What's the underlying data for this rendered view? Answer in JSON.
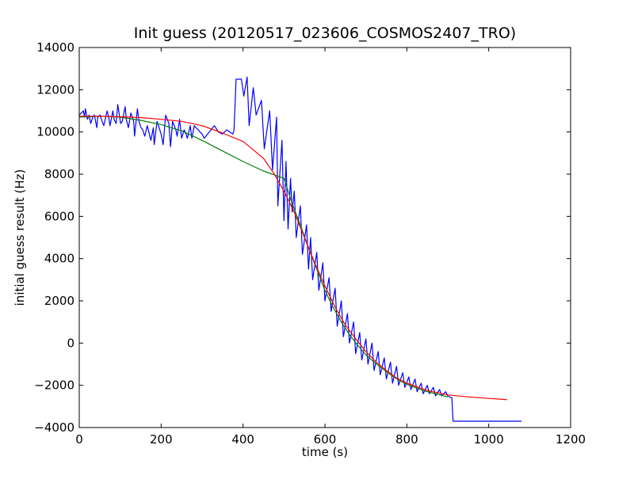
{
  "chart_data": {
    "type": "line",
    "title": "Init guess (20120517_023606_COSMOS2407_TRO)",
    "xlabel": "time (s)",
    "ylabel": "initial guess result (Hz)",
    "xlim": [
      0,
      1200
    ],
    "ylim": [
      -4000,
      14000
    ],
    "xticks": [
      0,
      200,
      400,
      600,
      800,
      1000,
      1200
    ],
    "yticks": [
      -4000,
      -2000,
      0,
      2000,
      4000,
      6000,
      8000,
      10000,
      12000,
      14000
    ],
    "x_tick_labels": [
      "0",
      "200",
      "400",
      "600",
      "800",
      "1000",
      "1200"
    ],
    "y_tick_labels": [
      "−4000",
      "−2000",
      "0",
      "2000",
      "4000",
      "6000",
      "8000",
      "10000",
      "12000",
      "14000"
    ],
    "grid": false,
    "legend": "none",
    "series": [
      {
        "color": "#0000ff",
        "x": [
          0,
          10,
          13,
          15,
          20,
          24,
          28,
          33,
          37,
          43,
          45,
          51,
          56,
          60,
          68,
          72,
          75,
          82,
          85,
          90,
          94,
          101,
          105,
          112,
          115,
          120,
          126,
          133,
          135,
          142,
          146,
          151,
          155,
          160,
          166,
          175,
          181,
          183,
          190,
          195,
          200,
          205,
          211,
          219,
          223,
          228,
          236,
          239,
          245,
          250,
          256,
          261,
          264,
          271,
          275,
          281,
          285,
          291,
          295,
          300,
          305,
          330,
          340,
          350,
          360,
          375,
          378,
          383,
          396,
          402,
          410,
          415,
          425,
          432,
          445,
          452,
          465,
          472,
          482,
          485,
          495,
          500,
          505,
          510,
          516,
          520,
          525,
          530,
          540,
          545,
          555,
          560,
          565,
          570,
          580,
          585,
          595,
          600,
          610,
          615,
          625,
          630,
          640,
          645,
          655,
          660,
          670,
          675,
          685,
          690,
          700,
          705,
          715,
          720,
          730,
          735,
          745,
          750,
          760,
          765,
          775,
          780,
          790,
          795,
          805,
          810,
          820,
          825,
          835,
          840,
          850,
          855,
          865,
          870,
          880,
          885,
          895,
          900,
          910,
          913,
          930,
          1000,
          1080
        ],
        "y": [
          10800,
          11000,
          10700,
          11100,
          10600,
          10800,
          10400,
          10700,
          10800,
          10200,
          10700,
          10800,
          10500,
          10300,
          11000,
          10700,
          10300,
          11000,
          10600,
          10400,
          11300,
          10400,
          10500,
          11200,
          10600,
          10200,
          10900,
          10500,
          9800,
          11100,
          10500,
          10200,
          10100,
          9800,
          10300,
          9600,
          10200,
          9400,
          10500,
          10200,
          9900,
          9400,
          10800,
          10400,
          9300,
          10500,
          10100,
          9800,
          10600,
          9700,
          10100,
          9900,
          9700,
          10300,
          9700,
          10300,
          10200,
          10100,
          10000,
          9900,
          9700,
          10300,
          10000,
          9900,
          10100,
          9900,
          10100,
          12500,
          12500,
          11700,
          12600,
          10300,
          12100,
          10800,
          11500,
          9200,
          11000,
          8200,
          10700,
          6500,
          9600,
          5800,
          8600,
          5400,
          7800,
          6200,
          7200,
          5000,
          6500,
          4200,
          5600,
          3500,
          5000,
          3000,
          4300,
          2500,
          3800,
          2000,
          3100,
          1500,
          2600,
          800,
          2000,
          300,
          1400,
          0,
          1000,
          -500,
          500,
          -800,
          200,
          -1000,
          0,
          -1300,
          -400,
          -1500,
          -700,
          -1700,
          -900,
          -1900,
          -1100,
          -2000,
          -1400,
          -2100,
          -1600,
          -2200,
          -1700,
          -2300,
          -1900,
          -2400,
          -2000,
          -2400,
          -2100,
          -2500,
          -2200,
          -2500,
          -2300,
          -2500,
          -2600,
          -3700,
          -3700,
          -3700,
          -3700
        ]
      },
      {
        "color": "#008000",
        "x": [
          0,
          50,
          100,
          150,
          200,
          250,
          300,
          350,
          400,
          450,
          500,
          520,
          540,
          560,
          580,
          600,
          620,
          640,
          660,
          680,
          700,
          720,
          740,
          760,
          780,
          800,
          820,
          840,
          860,
          880,
          900
        ],
        "y": [
          10700,
          10750,
          10700,
          10550,
          10350,
          10050,
          9600,
          9100,
          8600,
          8150,
          7800,
          6600,
          5600,
          4500,
          3500,
          2500,
          1700,
          1000,
          400,
          -100,
          -550,
          -900,
          -1200,
          -1500,
          -1750,
          -1950,
          -2100,
          -2250,
          -2350,
          -2450,
          -2550
        ]
      },
      {
        "color": "#ff0000",
        "x": [
          0,
          50,
          100,
          150,
          200,
          250,
          300,
          350,
          400,
          425,
          450,
          475,
          500,
          525,
          550,
          575,
          600,
          625,
          650,
          675,
          700,
          725,
          750,
          775,
          800,
          850,
          900,
          950,
          1000,
          1045
        ],
        "y": [
          10750,
          10750,
          10720,
          10680,
          10600,
          10500,
          10300,
          9950,
          9550,
          9150,
          8750,
          8050,
          7200,
          6200,
          5000,
          3800,
          2700,
          1700,
          850,
          200,
          -400,
          -900,
          -1300,
          -1650,
          -1900,
          -2250,
          -2450,
          -2550,
          -2620,
          -2680
        ]
      }
    ]
  }
}
